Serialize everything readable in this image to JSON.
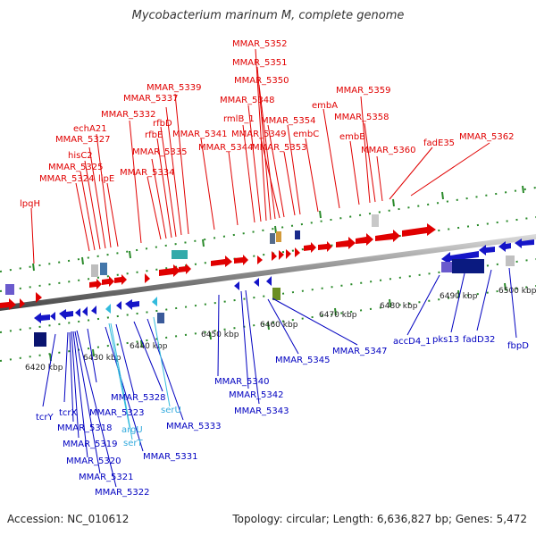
{
  "title": "Mycobacterium marinum M, complete genome",
  "footer": {
    "accession": "Accession: NC_010612",
    "summary": "Topology: circular; Length: 6,636,827 bp; Genes: 5,472"
  },
  "colors": {
    "forward_gene": "#e00000",
    "reverse_gene": "#0000c0",
    "rna_gene": "#33aadd",
    "backbone": "#999999",
    "tick_mark": "#2a8a2a"
  },
  "scale_ticks": [
    "6420 kbp",
    "6430 kbp",
    "6440 kbp",
    "6450 kbp",
    "6460 kbp",
    "6470 kbp",
    "6480 kbp",
    "6490 kbp",
    "6500 kbp"
  ],
  "top_labels": [
    "MMAR_5352",
    "MMAR_5351",
    "MMAR_5350",
    "MMAR_5339",
    "MMAR_5337",
    "MMAR_5348",
    "MMAR_5359",
    "embA",
    "MMAR_5332",
    "rfbD",
    "rmlB_1",
    "MMAR_5354",
    "MMAR_5358",
    "echA21",
    "rfbE",
    "MMAR_5341",
    "MMAR_5349",
    "embC",
    "embB",
    "fadE35",
    "MMAR_5362",
    "MMAR_5327",
    "MMAR_5335",
    "MMAR_5344",
    "MMAR_5353",
    "MMAR_5360",
    "hisC2",
    "MMAR_5325",
    "MMAR_5334",
    "MMAR_5324",
    "lipE",
    "lpqH"
  ],
  "bottom_labels": [
    "accD4_1",
    "pks13",
    "fadD32",
    "fbpD",
    "MMAR_5345",
    "MMAR_5347",
    "MMAR_5340",
    "MMAR_5342",
    "MMAR_5343",
    "MMAR_5328",
    "serU",
    "MMAR_5323",
    "argU",
    "MMAR_5333",
    "tcrY",
    "tcrX",
    "MMAR_5318",
    "serT",
    "MMAR_5319",
    "MMAR_5331",
    "MMAR_5320",
    "MMAR_5321",
    "MMAR_5322"
  ]
}
